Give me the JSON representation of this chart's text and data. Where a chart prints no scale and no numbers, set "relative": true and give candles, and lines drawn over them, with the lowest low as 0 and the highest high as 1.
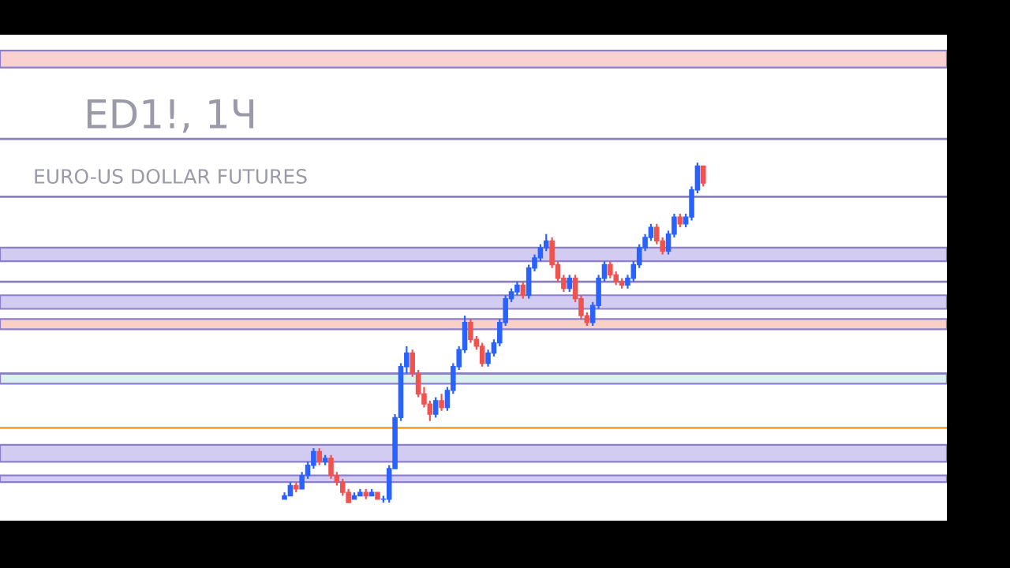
{
  "chart_data": {
    "type": "candlestick",
    "relative": true,
    "title": "ED1!, 1Ч",
    "subtitle": "EURO-US DOLLAR FUTURES",
    "categories": [
      null,
      null,
      null,
      null,
      null,
      null,
      null,
      null,
      null,
      null,
      null,
      null,
      null,
      null,
      null,
      null,
      null,
      null,
      null,
      null,
      null,
      null,
      null,
      null,
      null,
      null,
      null,
      null,
      null,
      null,
      null,
      null,
      null,
      null,
      null,
      null,
      null,
      null,
      null,
      null,
      null,
      null,
      null,
      null,
      null,
      null,
      null,
      null,
      null,
      null,
      null,
      null,
      null,
      null,
      null,
      null,
      null,
      null,
      null,
      null,
      null,
      null,
      null,
      null,
      null,
      null,
      null,
      null,
      null,
      null,
      null,
      null,
      null
    ],
    "ohlc": [
      [
        0.01,
        0.03,
        0.01,
        0.02
      ],
      [
        0.02,
        0.06,
        0.02,
        0.05
      ],
      [
        0.05,
        0.06,
        0.03,
        0.04
      ],
      [
        0.04,
        0.09,
        0.04,
        0.08
      ],
      [
        0.08,
        0.12,
        0.07,
        0.11
      ],
      [
        0.11,
        0.16,
        0.1,
        0.15
      ],
      [
        0.15,
        0.16,
        0.11,
        0.12
      ],
      [
        0.12,
        0.14,
        0.11,
        0.13
      ],
      [
        0.13,
        0.14,
        0.07,
        0.08
      ],
      [
        0.08,
        0.09,
        0.05,
        0.06
      ],
      [
        0.06,
        0.07,
        0.02,
        0.03
      ],
      [
        0.03,
        0.04,
        0.0,
        0.0
      ],
      [
        0.01,
        0.03,
        0.01,
        0.02
      ],
      [
        0.02,
        0.04,
        0.02,
        0.03
      ],
      [
        0.03,
        0.04,
        0.01,
        0.02
      ],
      [
        0.02,
        0.04,
        0.02,
        0.03
      ],
      [
        0.03,
        0.03,
        0.01,
        0.01
      ],
      [
        0.01,
        0.02,
        0.0,
        0.01
      ],
      [
        0.01,
        0.11,
        0.0,
        0.1
      ],
      [
        0.1,
        0.26,
        0.1,
        0.25
      ],
      [
        0.25,
        0.41,
        0.24,
        0.4
      ],
      [
        0.4,
        0.46,
        0.38,
        0.44
      ],
      [
        0.44,
        0.45,
        0.37,
        0.38
      ],
      [
        0.38,
        0.39,
        0.31,
        0.32
      ],
      [
        0.32,
        0.34,
        0.28,
        0.29
      ],
      [
        0.29,
        0.3,
        0.24,
        0.26
      ],
      [
        0.26,
        0.31,
        0.25,
        0.3
      ],
      [
        0.3,
        0.32,
        0.27,
        0.28
      ],
      [
        0.28,
        0.34,
        0.27,
        0.33
      ],
      [
        0.33,
        0.41,
        0.32,
        0.4
      ],
      [
        0.4,
        0.46,
        0.39,
        0.45
      ],
      [
        0.45,
        0.55,
        0.44,
        0.53
      ],
      [
        0.53,
        0.54,
        0.47,
        0.48
      ],
      [
        0.48,
        0.49,
        0.45,
        0.46
      ],
      [
        0.46,
        0.47,
        0.4,
        0.41
      ],
      [
        0.41,
        0.45,
        0.4,
        0.44
      ],
      [
        0.44,
        0.48,
        0.43,
        0.47
      ],
      [
        0.47,
        0.54,
        0.46,
        0.53
      ],
      [
        0.53,
        0.61,
        0.52,
        0.6
      ],
      [
        0.6,
        0.63,
        0.59,
        0.62
      ],
      [
        0.62,
        0.65,
        0.61,
        0.64
      ],
      [
        0.64,
        0.65,
        0.6,
        0.61
      ],
      [
        0.61,
        0.7,
        0.6,
        0.69
      ],
      [
        0.69,
        0.73,
        0.68,
        0.72
      ],
      [
        0.72,
        0.76,
        0.71,
        0.75
      ],
      [
        0.75,
        0.79,
        0.74,
        0.77
      ],
      [
        0.77,
        0.78,
        0.69,
        0.7
      ],
      [
        0.7,
        0.71,
        0.65,
        0.66
      ],
      [
        0.66,
        0.67,
        0.62,
        0.63
      ],
      [
        0.63,
        0.67,
        0.62,
        0.66
      ],
      [
        0.66,
        0.67,
        0.59,
        0.6
      ],
      [
        0.6,
        0.61,
        0.54,
        0.55
      ],
      [
        0.55,
        0.56,
        0.52,
        0.53
      ],
      [
        0.53,
        0.59,
        0.52,
        0.58
      ],
      [
        0.58,
        0.67,
        0.57,
        0.66
      ],
      [
        0.66,
        0.71,
        0.65,
        0.7
      ],
      [
        0.7,
        0.71,
        0.66,
        0.67
      ],
      [
        0.67,
        0.68,
        0.64,
        0.65
      ],
      [
        0.65,
        0.66,
        0.63,
        0.64
      ],
      [
        0.64,
        0.67,
        0.63,
        0.66
      ],
      [
        0.66,
        0.71,
        0.65,
        0.7
      ],
      [
        0.7,
        0.76,
        0.69,
        0.75
      ],
      [
        0.75,
        0.79,
        0.74,
        0.78
      ],
      [
        0.78,
        0.82,
        0.77,
        0.81
      ],
      [
        0.81,
        0.82,
        0.76,
        0.77
      ],
      [
        0.77,
        0.78,
        0.73,
        0.74
      ],
      [
        0.74,
        0.8,
        0.73,
        0.79
      ],
      [
        0.79,
        0.85,
        0.78,
        0.84
      ],
      [
        0.84,
        0.85,
        0.81,
        0.82
      ],
      [
        0.82,
        0.85,
        0.81,
        0.84
      ],
      [
        0.84,
        0.93,
        0.83,
        0.92
      ],
      [
        0.92,
        1.0,
        0.91,
        0.99
      ],
      [
        0.99,
        0.99,
        0.93,
        0.94
      ]
    ],
    "colors": [
      "#2962ff",
      "#2962ff",
      "#ef5350",
      "#2962ff",
      "#2962ff",
      "#2962ff",
      "#ef5350",
      "#2962ff",
      "#ef5350",
      "#ef5350",
      "#ef5350",
      "#ef5350",
      "#2962ff",
      "#2962ff",
      "#ef5350",
      "#2962ff",
      "#ef5350",
      "#2962ff",
      "#2962ff",
      "#2962ff",
      "#2962ff",
      "#2962ff",
      "#ef5350",
      "#ef5350",
      "#ef5350",
      "#ef5350",
      "#2962ff",
      "#ef5350",
      "#2962ff",
      "#2962ff",
      "#2962ff",
      "#2962ff",
      "#ef5350",
      "#ef5350",
      "#ef5350",
      "#2962ff",
      "#2962ff",
      "#2962ff",
      "#2962ff",
      "#2962ff",
      "#2962ff",
      "#ef5350",
      "#2962ff",
      "#2962ff",
      "#2962ff",
      "#2962ff",
      "#ef5350",
      "#ef5350",
      "#ef5350",
      "#2962ff",
      "#ef5350",
      "#ef5350",
      "#ef5350",
      "#2962ff",
      "#2962ff",
      "#2962ff",
      "#ef5350",
      "#ef5350",
      "#ef5350",
      "#2962ff",
      "#2962ff",
      "#2962ff",
      "#2962ff",
      "#2962ff",
      "#ef5350",
      "#ef5350",
      "#2962ff",
      "#2962ff",
      "#ef5350",
      "#2962ff",
      "#2962ff",
      "#2962ff",
      "#ef5350"
    ],
    "bands": [
      {
        "axis": "y",
        "from": 1.28,
        "to": 1.33,
        "color": "#f9caca"
      },
      {
        "axis": "y",
        "from": 0.71,
        "to": 0.75,
        "color": "#cbc3f0"
      },
      {
        "axis": "y",
        "from": 0.57,
        "to": 0.61,
        "color": "#cbc3f0"
      },
      {
        "axis": "y",
        "from": 0.51,
        "to": 0.54,
        "color": "#f9c8bf"
      },
      {
        "axis": "y",
        "from": 0.35,
        "to": 0.38,
        "color": "#d4efea"
      },
      {
        "axis": "y",
        "from": 0.12,
        "to": 0.17,
        "color": "#cbc3f0"
      },
      {
        "axis": "y",
        "from": 0.06,
        "to": 0.08,
        "color": "#cbc3f0"
      }
    ],
    "ref_lines": [
      {
        "axis": "y",
        "value": 1.07,
        "color": "#8a7fc0"
      },
      {
        "axis": "y",
        "value": 0.9,
        "color": "#8a7fc0"
      },
      {
        "axis": "y",
        "value": 0.65,
        "color": "#8a7fc0"
      },
      {
        "axis": "y",
        "value": 0.38,
        "color": "#8a7fc0"
      },
      {
        "axis": "y",
        "value": 0.22,
        "color": "#f5a623"
      }
    ],
    "grid": false
  }
}
